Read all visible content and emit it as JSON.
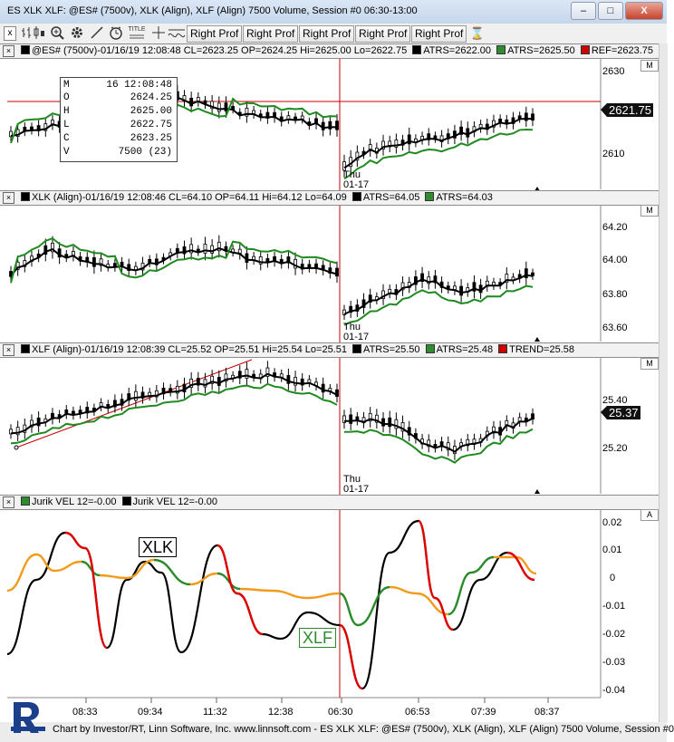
{
  "window": {
    "title": "ES XLK XLF: @ES# (7500v), XLK (Align), XLF (Align) 7500 Volume, Session #0 06:30-13:00",
    "minimize": "–",
    "maximize": "□",
    "close": "X"
  },
  "toolbar": {
    "close": "x",
    "icons": [
      "bar-chart-icon",
      "candlestick-icon",
      "zoom-icon",
      "gear-icon",
      "draw-line-icon",
      "clock-icon",
      "title-icon",
      "crosshair-icon",
      "measure-icon"
    ],
    "title_icon_text": "TITLE",
    "right_prof": [
      "Right Prof",
      "Right Prof",
      "Right Prof",
      "Right Prof",
      "Right Prof"
    ],
    "hourglass": "⌛"
  },
  "panels": [
    {
      "header": "@ES# (7500v)-01/16/19 12:08:48 CL=2623.25 OP=2624.25 Hi=2625.00 Lo=2622.75",
      "studies": [
        {
          "label": "ATRS=2622.00",
          "color": "#000000"
        },
        {
          "label": "ATRS=2625.50",
          "color": "#2e8b2e"
        },
        {
          "label": "REF=2623.75",
          "color": "#cc0000"
        }
      ],
      "scale": [
        "2630",
        "2610"
      ],
      "current_price": "2621.75",
      "m_button": "M",
      "day_label": [
        "Thu",
        "01-17"
      ]
    },
    {
      "header": "XLK (Align)-01/16/19 12:08:46 CL=64.10 OP=64.11 Hi=64.12 Lo=64.09",
      "studies": [
        {
          "label": "ATRS=64.05",
          "color": "#000000"
        },
        {
          "label": "ATRS=64.03",
          "color": "#2e8b2e"
        }
      ],
      "scale": [
        "64.20",
        "64.00",
        "63.80",
        "63.60"
      ],
      "m_button": "M",
      "day_label": [
        "Thu",
        "01-17"
      ]
    },
    {
      "header": "XLF (Align)-01/16/19 12:08:39 CL=25.52 OP=25.51 Hi=25.54 Lo=25.51",
      "studies": [
        {
          "label": "ATRS=25.50",
          "color": "#000000"
        },
        {
          "label": "ATRS=25.48",
          "color": "#2e8b2e"
        },
        {
          "label": "TREND=25.58",
          "color": "#cc0000"
        }
      ],
      "scale": [
        "25.40",
        "25.20"
      ],
      "current_price": "25.37",
      "m_button": "M",
      "day_label": [
        "Thu",
        "01-17"
      ]
    },
    {
      "header_studies": [
        {
          "label": "Jurik VEL 12=-0.00",
          "color": "#2e8b2e"
        },
        {
          "label": "Jurik VEL 12=-0.00",
          "color": "#000000"
        }
      ],
      "scale": [
        "0.02",
        "0.01",
        "0",
        "-0.01",
        "-0.02",
        "-0.03",
        "-0.04"
      ],
      "a_button": "A",
      "callouts": {
        "xlk": "XLK",
        "xlf": "XLF"
      }
    }
  ],
  "ohlc_box": {
    "rows": [
      {
        "k": "M",
        "v": "16 12:08:48"
      },
      {
        "k": "O",
        "v": "2624.25"
      },
      {
        "k": "H",
        "v": "2625.00"
      },
      {
        "k": "L",
        "v": "2622.75"
      },
      {
        "k": "C",
        "v": "2623.25"
      },
      {
        "k": "V",
        "v": "7500  (23)"
      }
    ]
  },
  "time_axis": [
    "08:33",
    "09:34",
    "11:32",
    "12:38",
    "06:30",
    "06:53",
    "07:39",
    "08:37"
  ],
  "statusbar": {
    "text": "Chart by Investor/RT, Linn Software, Inc. www.linnsoft.com - ES XLK XLF: @ES# (7500v), XLK (Align), XLF (Align) 7500 Volume, Session #0"
  },
  "colors": {
    "price_black": "#000000",
    "atrs_green": "#1f8a1f",
    "ref_red": "#cc0000",
    "jurik_red": "#e00000",
    "jurik_orange": "#f29a1a",
    "jurik_green": "#2a8a2a",
    "candle_up": "#ffffff",
    "candle_down": "#000000"
  }
}
